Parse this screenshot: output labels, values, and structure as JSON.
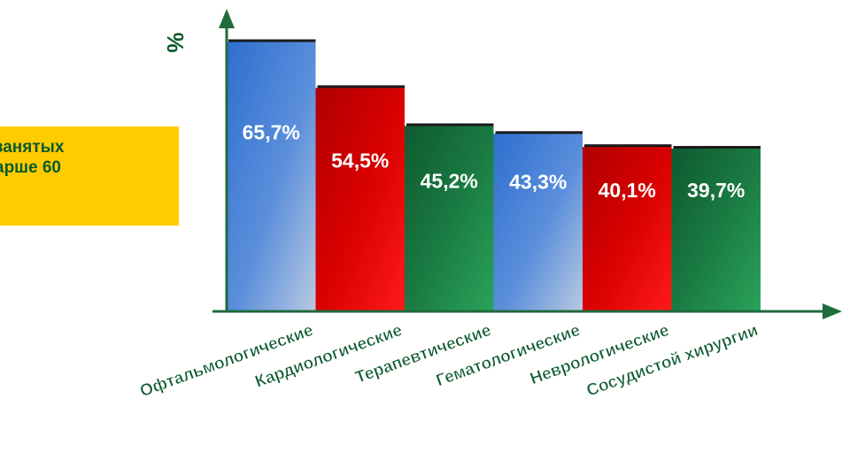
{
  "callout": {
    "line1": "занятых",
    "line2": "арше 60"
  },
  "colors": {
    "axis": "#1f6b3c",
    "label": "#0b5a2e",
    "callout_bg": "#ffcc00",
    "blue": "#3f7fd6",
    "red": "#d90000",
    "green": "#1f8a4a"
  },
  "chart_data": {
    "type": "bar",
    "ylabel": "%",
    "xlabel": "",
    "ylim": [
      0,
      70
    ],
    "grid": false,
    "categories": [
      "Офтальмологические",
      "Кардиологические",
      "Терапевтические",
      "Гематологические",
      "Неврологические",
      "Сосудистой хирургии"
    ],
    "values": [
      65.7,
      54.5,
      45.2,
      43.3,
      40.1,
      39.7
    ],
    "data_labels": [
      "65,7%",
      "54,5%",
      "45,2%",
      "43,3%",
      "40,1%",
      "39,7%"
    ],
    "bar_colors": [
      "blue",
      "red",
      "green",
      "blue",
      "red",
      "green"
    ]
  }
}
